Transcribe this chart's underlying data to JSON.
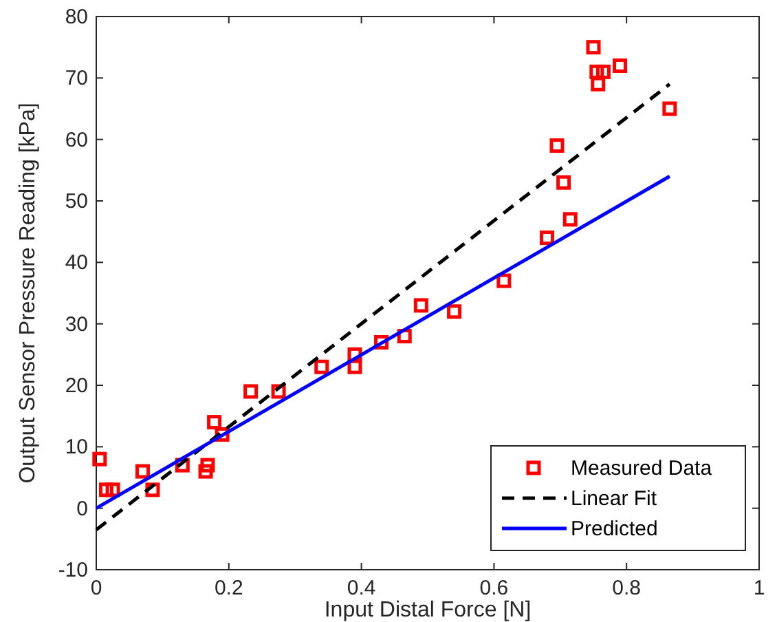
{
  "chart_data": {
    "type": "scatter",
    "xlabel": "Input Distal Force [N]",
    "ylabel": "Output Sensor Pressure Reading [kPa]",
    "xlim": [
      0,
      1
    ],
    "xticks": [
      0,
      0.2,
      0.4,
      0.6,
      0.8,
      1
    ],
    "ylim": [
      -10,
      80
    ],
    "yticks": [
      -10,
      0,
      10,
      20,
      30,
      40,
      50,
      60,
      70,
      80
    ],
    "grid": false,
    "legend": "bottom right",
    "series": [
      {
        "name": "Measured Data",
        "marker": "square",
        "color": "#ff0000",
        "x": [
          0.005,
          0.015,
          0.025,
          0.07,
          0.085,
          0.13,
          0.165,
          0.168,
          0.178,
          0.19,
          0.233,
          0.275,
          0.34,
          0.39,
          0.39,
          0.43,
          0.465,
          0.49,
          0.54,
          0.615,
          0.68,
          0.695,
          0.705,
          0.715,
          0.75,
          0.755,
          0.757,
          0.765,
          0.79,
          0.865
        ],
        "values": [
          8,
          3,
          3,
          6,
          3,
          7,
          6,
          7,
          14,
          12,
          19,
          19,
          23,
          23,
          25,
          27,
          28,
          33,
          32,
          37,
          44,
          59,
          53,
          47,
          75,
          71,
          69,
          71,
          72,
          65
        ]
      },
      {
        "name": "Linear Fit",
        "type": "line",
        "line_style": "dashed",
        "marker": "none",
        "color": "#000000",
        "x": [
          0,
          0.865
        ],
        "values": [
          -3.5,
          69
        ]
      },
      {
        "name": "Predicted",
        "type": "line",
        "line_style": "solid",
        "marker": "none",
        "color": "#0000ff",
        "x": [
          0,
          0.865
        ],
        "values": [
          0,
          54
        ]
      }
    ]
  }
}
